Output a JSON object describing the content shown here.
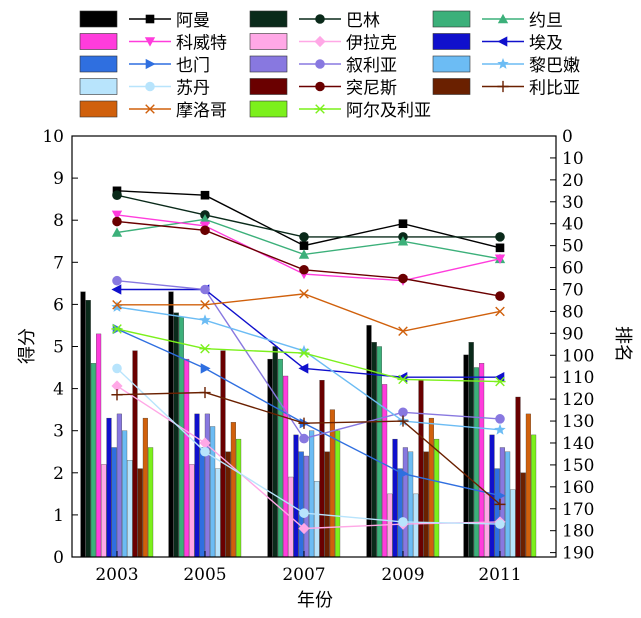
{
  "chart_data": {
    "type": "bar+line",
    "categories": [
      "2003",
      "2005",
      "2007",
      "2009",
      "2011"
    ],
    "xlabel": "年份",
    "ylabel_left": "得分",
    "ylabel_right": "排名",
    "ylim_left": [
      0,
      10
    ],
    "ylim_right": [
      0,
      190
    ],
    "right_axis_inverted": true,
    "left_ticks": [
      "0",
      "1",
      "2",
      "3",
      "4",
      "5",
      "6",
      "7",
      "8",
      "9",
      "10"
    ],
    "right_ticks": [
      "0",
      "10",
      "20",
      "30",
      "40",
      "50",
      "60",
      "70",
      "80",
      "90",
      "100",
      "110",
      "120",
      "130",
      "140",
      "150",
      "160",
      "170",
      "180",
      "190"
    ],
    "grid": false,
    "legend_position": "top",
    "series": [
      {
        "name": "阿曼",
        "color": "#000000",
        "marker": "square",
        "scores": [
          6.3,
          6.3,
          4.7,
          5.5,
          4.8
        ],
        "ranks": [
          25,
          27,
          50,
          40,
          51
        ]
      },
      {
        "name": "巴林",
        "color": "#0a2a1a",
        "marker": "circle",
        "scores": [
          6.1,
          5.8,
          5.0,
          5.1,
          5.1
        ],
        "ranks": [
          27,
          36,
          46,
          46,
          46
        ]
      },
      {
        "name": "约旦",
        "color": "#3cb07a",
        "marker": "triangle-up",
        "scores": [
          4.6,
          5.7,
          4.7,
          5.0,
          4.5
        ],
        "ranks": [
          44,
          38,
          54,
          48,
          56
        ]
      },
      {
        "name": "科威特",
        "color": "#ff3cdc",
        "marker": "triangle-down",
        "scores": [
          5.3,
          4.7,
          4.3,
          4.1,
          4.6
        ],
        "ranks": [
          36,
          41,
          63,
          66,
          56
        ]
      },
      {
        "name": "伊拉克",
        "color": "#ffa8e6",
        "marker": "diamond",
        "scores": [
          2.2,
          2.2,
          1.9,
          1.5,
          1.5
        ],
        "ranks": [
          114,
          140,
          179,
          177,
          176
        ]
      },
      {
        "name": "埃及",
        "color": "#1010cc",
        "marker": "triangle-left",
        "scores": [
          3.3,
          3.4,
          2.9,
          2.8,
          2.9
        ],
        "ranks": [
          70,
          70,
          106,
          110,
          110
        ]
      },
      {
        "name": "也门",
        "color": "#2f6fe0",
        "marker": "triangle-right",
        "scores": [
          2.6,
          2.6,
          2.5,
          2.1,
          2.1
        ],
        "ranks": [
          88,
          106,
          131,
          154,
          164
        ]
      },
      {
        "name": "叙利亚",
        "color": "#8878e0",
        "marker": "circle",
        "scores": [
          3.4,
          3.4,
          2.4,
          2.6,
          2.6
        ],
        "ranks": [
          66,
          70,
          138,
          126,
          129
        ]
      },
      {
        "name": "黎巴嫩",
        "color": "#6cbcf4",
        "marker": "star",
        "scores": [
          3.0,
          3.1,
          3.0,
          2.5,
          2.5
        ],
        "ranks": [
          78,
          84,
          98,
          130,
          134
        ]
      },
      {
        "name": "苏丹",
        "color": "#b8e4fc",
        "marker": "circle",
        "scores": [
          2.3,
          2.1,
          1.8,
          1.5,
          1.6
        ],
        "ranks": [
          106,
          144,
          172,
          176,
          177
        ]
      },
      {
        "name": "突尼斯",
        "color": "#6a0000",
        "marker": "circle",
        "scores": [
          4.9,
          4.9,
          4.2,
          4.2,
          3.8
        ],
        "ranks": [
          39,
          43,
          61,
          65,
          73
        ]
      },
      {
        "name": "利比亚",
        "color": "#6a2000",
        "marker": "plus",
        "scores": [
          2.1,
          2.5,
          2.5,
          2.5,
          2.0
        ],
        "ranks": [
          118,
          117,
          131,
          130,
          168
        ]
      },
      {
        "name": "摩洛哥",
        "color": "#d0600c",
        "marker": "x",
        "scores": [
          3.3,
          3.2,
          3.5,
          3.3,
          3.4
        ],
        "ranks": [
          77,
          77,
          72,
          89,
          80
        ]
      },
      {
        "name": "阿尔及利亚",
        "color": "#7cf01c",
        "marker": "asterisk",
        "scores": [
          2.6,
          2.8,
          3.0,
          2.8,
          2.9
        ],
        "ranks": [
          88,
          97,
          99,
          111,
          112
        ]
      }
    ]
  }
}
